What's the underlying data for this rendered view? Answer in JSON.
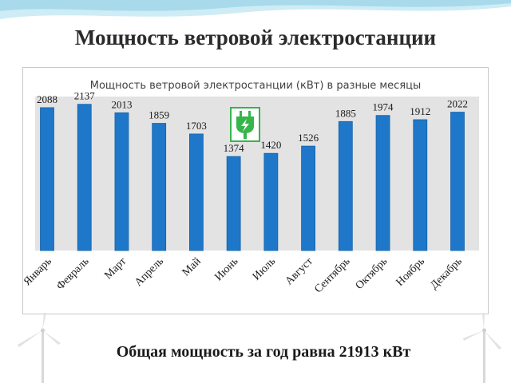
{
  "slide": {
    "title": "Мощность ветровой электростанции",
    "total": "Общая мощность за год равна 21913 кВт"
  },
  "colors": {
    "bar": "#1f77c9",
    "bar_edge": "#1463a8",
    "plot_bg": "#e3e3e3",
    "icon_green": "#35b54a",
    "wave": "#9fd6ea"
  },
  "icons": [
    "power-plug-icon",
    "wind-turbine-icon"
  ],
  "chart_data": {
    "type": "bar",
    "title": "Мощность ветровой электростанции (кВт) в разные месяцы",
    "categories": [
      "Январь",
      "Февраль",
      "Март",
      "Апрель",
      "Май",
      "Июнь",
      "Июль",
      "Август",
      "Сентябрь",
      "Октябрь",
      "Ноябрь",
      "Декабрь"
    ],
    "values": [
      2088,
      2137,
      2013,
      1859,
      1703,
      1374,
      1420,
      1526,
      1885,
      1974,
      1912,
      2022
    ],
    "ylim": [
      0,
      2250
    ],
    "grid": false,
    "data_labels": true,
    "legend": false
  }
}
